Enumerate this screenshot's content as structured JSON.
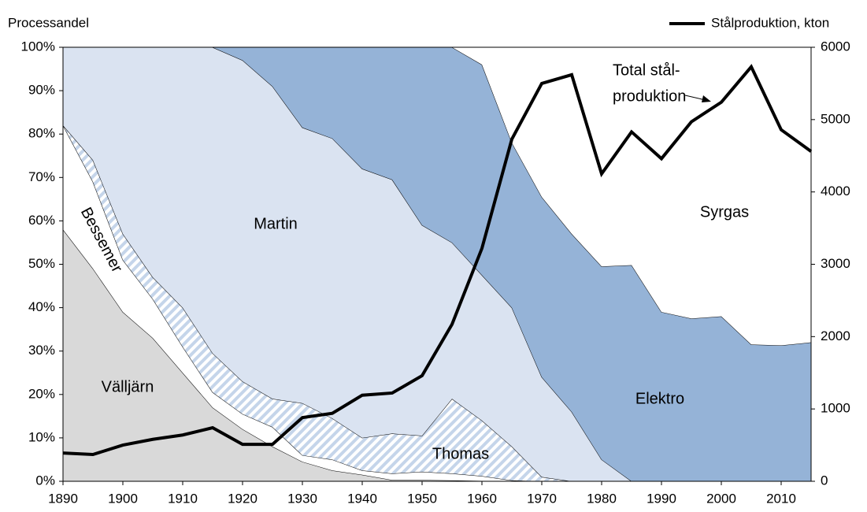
{
  "chart_data": {
    "type": "stacked_area_line",
    "y_label": "Processandel",
    "x": [
      1890,
      1895,
      1900,
      1905,
      1910,
      1915,
      1920,
      1925,
      1930,
      1935,
      1940,
      1945,
      1950,
      1955,
      1960,
      1965,
      1970,
      1975,
      1980,
      1985,
      1990,
      1995,
      2000,
      2005,
      2010,
      2015
    ],
    "xlim": [
      1890,
      2015
    ],
    "xticks": [
      1890,
      1900,
      1910,
      1920,
      1930,
      1940,
      1950,
      1960,
      1970,
      1980,
      1990,
      2000,
      2010
    ],
    "ylim": [
      0,
      100
    ],
    "yticks": [
      {
        "value": 0,
        "label": "0%"
      },
      {
        "value": 10,
        "label": "10%"
      },
      {
        "value": 20,
        "label": "20%"
      },
      {
        "value": 30,
        "label": "30%"
      },
      {
        "value": 40,
        "label": "40%"
      },
      {
        "value": 50,
        "label": "50%"
      },
      {
        "value": 60,
        "label": "60%"
      },
      {
        "value": 70,
        "label": "70%"
      },
      {
        "value": 80,
        "label": "80%"
      },
      {
        "value": 90,
        "label": "90%"
      },
      {
        "value": 100,
        "label": "100%"
      }
    ],
    "y2lim": [
      0,
      6000
    ],
    "y2ticks": [
      0,
      1000,
      2000,
      3000,
      4000,
      5000,
      6000
    ],
    "series": [
      {
        "name": "Välljärn",
        "color": "#d9d9d9",
        "values": [
          58,
          49,
          39,
          33,
          25,
          17,
          12,
          8,
          4.5,
          2.5,
          1.5,
          0.3,
          0.3,
          0.2,
          0.1,
          0,
          0,
          0,
          0,
          0,
          0,
          0,
          0,
          0,
          0,
          0
        ]
      },
      {
        "name": "Bessemer",
        "color": "#ffffff",
        "values": [
          24,
          20,
          12,
          9,
          6,
          3.5,
          3.5,
          4.5,
          1.5,
          2.5,
          1,
          1.5,
          1.9,
          1.6,
          1.1,
          0.2,
          0,
          0,
          0,
          0,
          0,
          0,
          0,
          0,
          0,
          0
        ]
      },
      {
        "name": "Thomas",
        "color": "#c5d5ea",
        "pattern": "hatch",
        "values": [
          0,
          5,
          6,
          5,
          9,
          9,
          7.5,
          6.5,
          12,
          9.5,
          7.5,
          9.2,
          8.3,
          17.2,
          12.8,
          7.8,
          1,
          0,
          0,
          0,
          0,
          0,
          0,
          0,
          0,
          0
        ]
      },
      {
        "name": "Martin",
        "color": "#dae3f1",
        "values": [
          18,
          26,
          43,
          53,
          60,
          70.5,
          74,
          72,
          63.5,
          64.5,
          62,
          58.5,
          48.5,
          36,
          33.5,
          32,
          23,
          16,
          5,
          0,
          0,
          0,
          0,
          0,
          0,
          0
        ]
      },
      {
        "name": "Elektro",
        "color": "#95b3d7",
        "values": [
          0,
          0,
          0,
          0,
          0,
          0,
          3,
          9,
          18.5,
          21,
          28,
          30.5,
          41,
          45,
          48.5,
          38,
          41.5,
          41,
          44.5,
          49.8,
          39,
          37.5,
          38,
          31.5,
          31.3,
          32
        ]
      },
      {
        "name": "Syrgas",
        "color": "#ffffff",
        "values": [
          0,
          0,
          0,
          0,
          0,
          0,
          0,
          0,
          0,
          0,
          0,
          0,
          0,
          0,
          4,
          22,
          34.5,
          43,
          50.5,
          50.2,
          61,
          62.5,
          62,
          68.5,
          68.7,
          68
        ]
      },
      {
        "name": "Stålproduktion, kton",
        "color": "#000000",
        "axis": "y2",
        "values": [
          390,
          370,
          500,
          580,
          640,
          740,
          510,
          510,
          880,
          940,
          1190,
          1220,
          1460,
          2170,
          3220,
          4730,
          5500,
          5620,
          4250,
          4830,
          4460,
          4970,
          5240,
          5730,
          4860,
          4560
        ]
      }
    ],
    "annotation": [
      "Total stål-",
      "produktion"
    ]
  }
}
